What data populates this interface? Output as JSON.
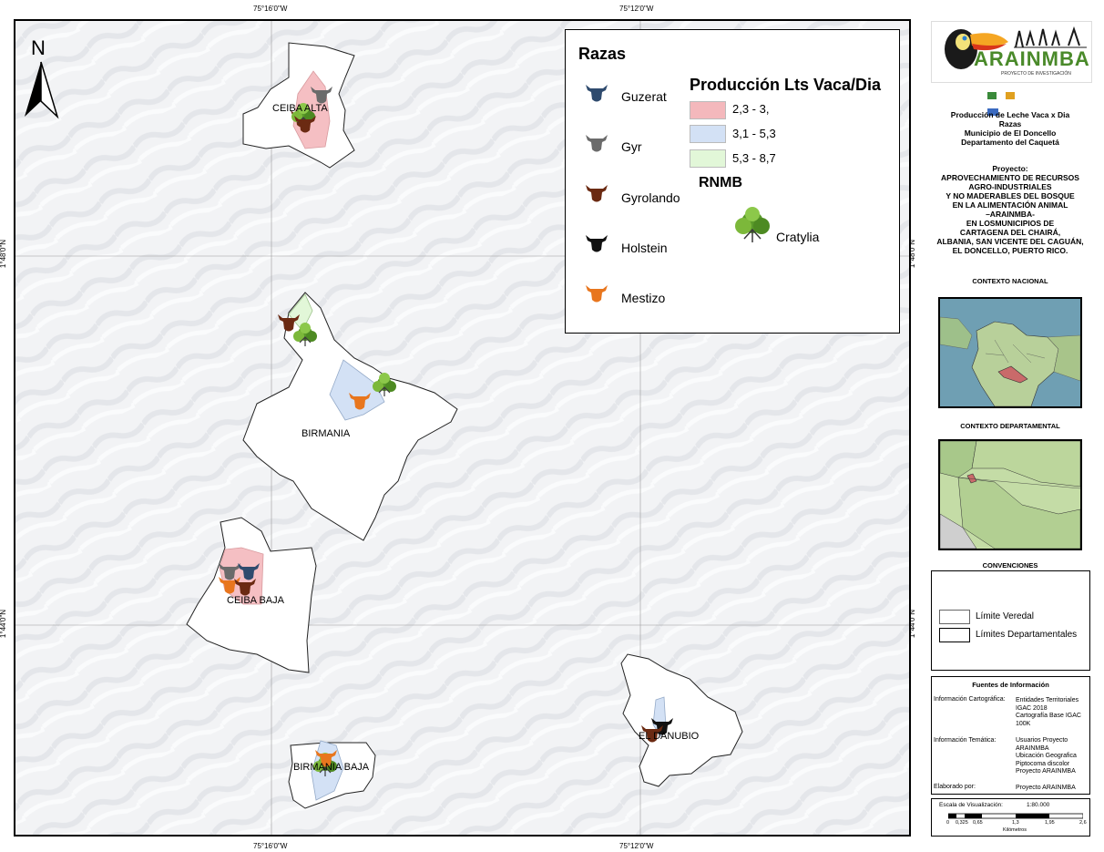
{
  "map": {
    "coords_top": [
      "75°16'0\"W",
      "75°12'0\"W"
    ],
    "coords_bottom": [
      "75°16'0\"W",
      "75°12'0\"W"
    ],
    "coords_left": [
      "1°48'0\"N",
      "1°44'0\"N"
    ],
    "coords_right": [
      "1°48'0\"N",
      "1°44'0\"N"
    ],
    "north_label": "N",
    "veredas": [
      "CEIBA ALTA",
      "BIRMANIA",
      "CEIBA  BAJA",
      "EL DANUBIO",
      "BIRMANIA BAJA"
    ]
  },
  "legend": {
    "razas_title": "Razas",
    "razas": [
      {
        "label": "Guzerat",
        "color": "#2f4b6e"
      },
      {
        "label": "Gyr",
        "color": "#6b6b6b"
      },
      {
        "label": "Gyrolando",
        "color": "#6b2a12"
      },
      {
        "label": "Holstein",
        "color": "#111111"
      },
      {
        "label": "Mestizo",
        "color": "#e8761e"
      }
    ],
    "produccion_title": "Producción Lts Vaca/Dia",
    "produccion": [
      {
        "label": "2,3 - 3,",
        "color": "#f4b8bc"
      },
      {
        "label": "3,1 - 5,3",
        "color": "#d3e1f5"
      },
      {
        "label": "5,3 - 8,7",
        "color": "#e2f7d8"
      }
    ],
    "rnmb_title": "RNMB",
    "rnmb_item": "Cratylia"
  },
  "panel": {
    "logo_text": "ARAINMBA",
    "logo_subtext": "PROYECTO DE INVESTIGACIÓN",
    "title_lines": [
      "Producción de Leche Vaca x Dia",
      "Razas",
      "Municipio de El Doncello",
      "Departamento del Caquetá"
    ],
    "project_lines": [
      "Proyecto:",
      "APROVECHAMIENTO DE RECURSOS",
      "AGRO-INDUSTRIALES",
      "Y NO MADERABLES DEL BOSQUE",
      "EN LA ALIMENTACIÓN ANIMAL",
      "–ARAINMBA-",
      "EN LOSMUNICIPIOS DE",
      "CARTAGENA DEL CHAIRÁ,",
      "ALBANIA, SAN VICENTE DEL CAGUÁN,",
      "EL DONCELLO, PUERTO RICO."
    ],
    "contexto_nacional": "CONTEXTO NACIONAL",
    "contexto_departamental": "CONTEXTO DEPARTAMENTAL",
    "convenciones_title": "CONVENCIONES",
    "convenciones": [
      "Límite Veredal",
      "Límites Departamentales"
    ],
    "fuentes_title": "Fuentes de Información",
    "fuentes": [
      {
        "label": "Información Cartográfica:",
        "value": [
          "Entidades Territoriales",
          "IGAC 2018",
          "Cartografía Base IGAC",
          "100K"
        ]
      },
      {
        "label": "Información Temática:",
        "value": [
          "Usuarios Proyecto",
          "ARAINMBA",
          "Ubicación Geografica",
          "Piptocoma discolor",
          "Proyecto ARAINMBA"
        ]
      },
      {
        "label": "Elaborado por:",
        "value": [
          "Proyecto ARAINMBA"
        ]
      }
    ],
    "scale_label": "Escala de Visualización:",
    "scale_value": "1:80.000",
    "scale_ticks": [
      "0",
      "0,325",
      "0,65",
      "1,3",
      "1,95",
      "2,6"
    ],
    "scale_unit": "Kilómetros"
  }
}
